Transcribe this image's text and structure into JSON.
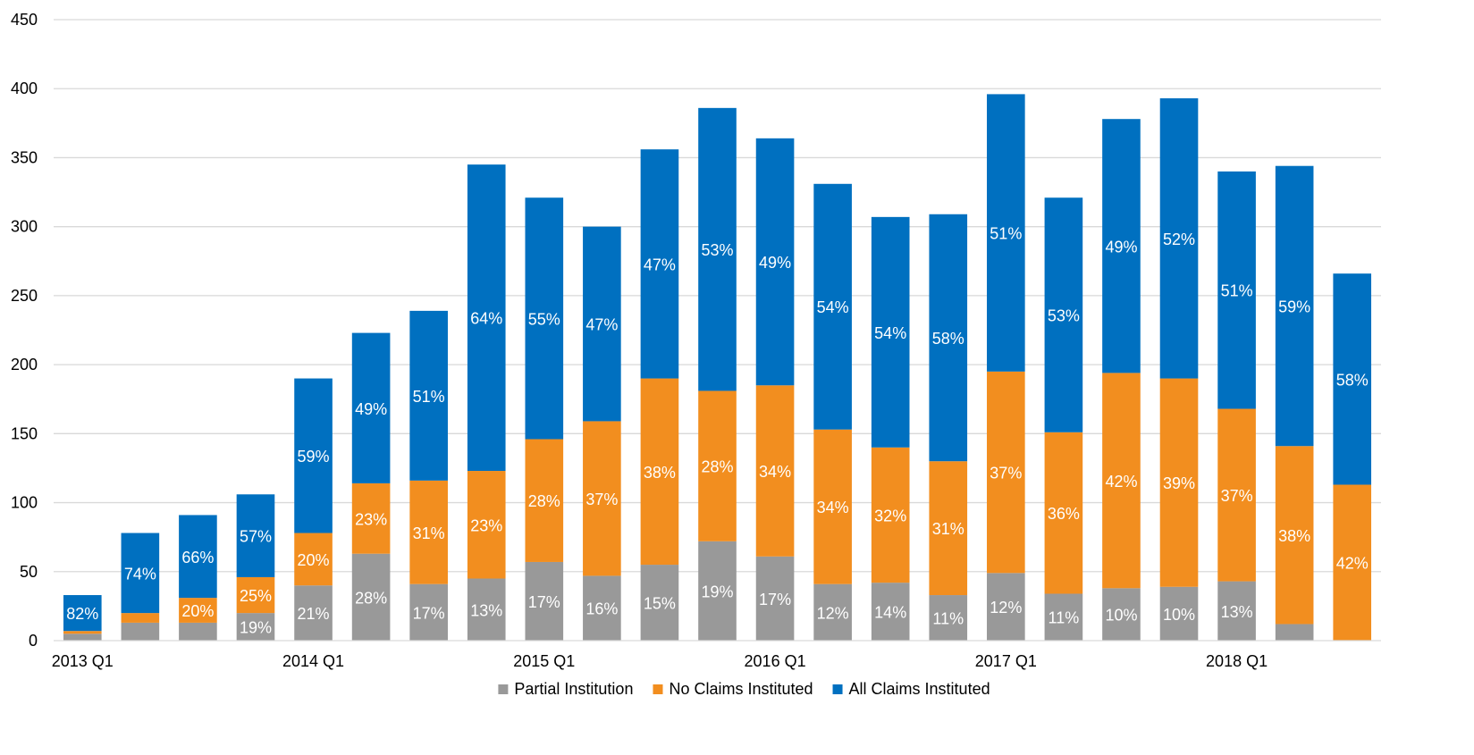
{
  "chart_data": {
    "type": "bar",
    "stacked": true,
    "title": "",
    "xlabel": "",
    "ylabel": "",
    "ylim": [
      0,
      450
    ],
    "yticks": [
      0,
      50,
      100,
      150,
      200,
      250,
      300,
      350,
      400,
      450
    ],
    "grid": true,
    "legend_position": "bottom",
    "categories": [
      "2013 Q1",
      "2013 Q2",
      "2013 Q3",
      "2013 Q4",
      "2014 Q1",
      "2014 Q2",
      "2014 Q3",
      "2014 Q4",
      "2015 Q1",
      "2015 Q2",
      "2015 Q3",
      "2015 Q4",
      "2016 Q1",
      "2016 Q2",
      "2016 Q3",
      "2016 Q4",
      "2017 Q1",
      "2017 Q2",
      "2017 Q3",
      "2017 Q4",
      "2018 Q1",
      "2018 Q2",
      "2018 Q3"
    ],
    "x_tick_labels": [
      "2013 Q1",
      "",
      "",
      "",
      "2014 Q1",
      "",
      "",
      "",
      "2015 Q1",
      "",
      "",
      "",
      "2016 Q1",
      "",
      "",
      "",
      "2017 Q1",
      "",
      "",
      "",
      "2018 Q1",
      "",
      ""
    ],
    "series": [
      {
        "name": "Partial Institution",
        "color": "#999999",
        "values": [
          5,
          13,
          13,
          20,
          40,
          63,
          41,
          45,
          57,
          47,
          55,
          72,
          61,
          41,
          42,
          33,
          49,
          34,
          38,
          39,
          43,
          12,
          0
        ],
        "labels": [
          "",
          "",
          "",
          "19%",
          "21%",
          "28%",
          "17%",
          "13%",
          "17%",
          "16%",
          "15%",
          "19%",
          "17%",
          "12%",
          "14%",
          "11%",
          "12%",
          "11%",
          "10%",
          "10%",
          "13%",
          "",
          ""
        ]
      },
      {
        "name": "No Claims Instituted",
        "color": "#f28e1f",
        "values": [
          2,
          7,
          18,
          26,
          38,
          51,
          75,
          78,
          89,
          112,
          135,
          109,
          124,
          112,
          98,
          97,
          146,
          117,
          156,
          151,
          125,
          129,
          113
        ],
        "labels": [
          "",
          "",
          "20%",
          "25%",
          "20%",
          "23%",
          "31%",
          "23%",
          "28%",
          "37%",
          "38%",
          "28%",
          "34%",
          "34%",
          "32%",
          "31%",
          "37%",
          "36%",
          "42%",
          "39%",
          "37%",
          "38%",
          "42%"
        ]
      },
      {
        "name": "All Claims Instituted",
        "color": "#0070c0",
        "values": [
          26,
          58,
          60,
          60,
          112,
          109,
          123,
          222,
          175,
          141,
          166,
          205,
          179,
          178,
          167,
          179,
          201,
          170,
          184,
          203,
          172,
          203,
          153
        ],
        "labels": [
          "82%",
          "74%",
          "66%",
          "57%",
          "59%",
          "49%",
          "51%",
          "64%",
          "55%",
          "47%",
          "47%",
          "53%",
          "49%",
          "54%",
          "54%",
          "58%",
          "51%",
          "53%",
          "49%",
          "52%",
          "51%",
          "59%",
          "58%"
        ]
      }
    ]
  }
}
